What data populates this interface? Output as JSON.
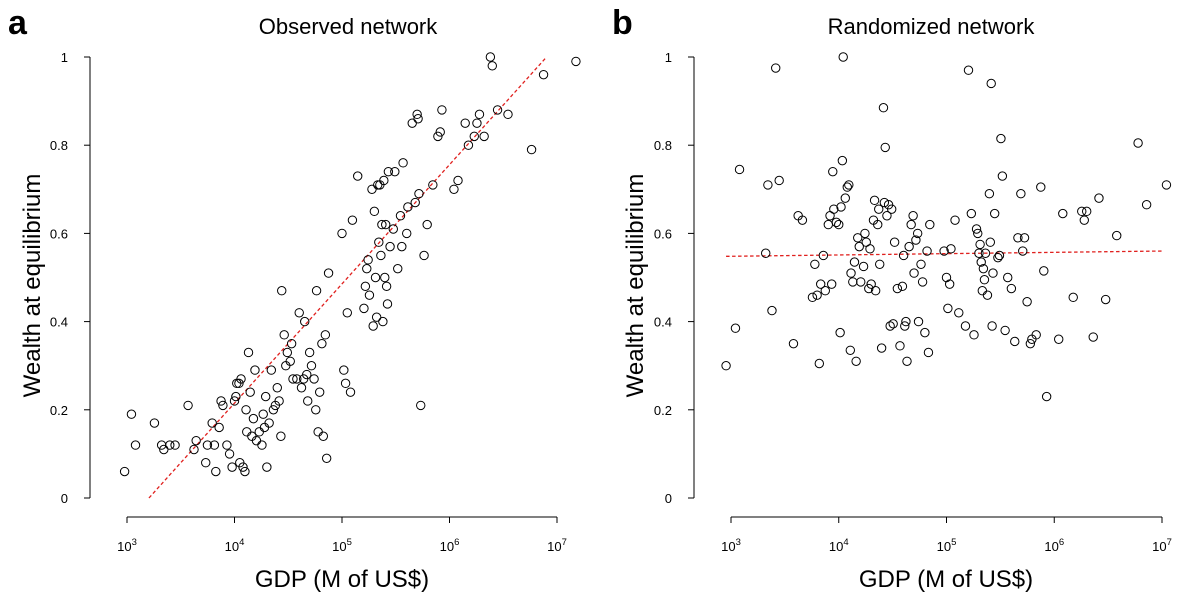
{
  "chart_data": [
    {
      "type": "scatter",
      "panel_label": "a",
      "title": "Observed network",
      "xlabel": "GDP (M of US$)",
      "ylabel": "Wealth at equilibrium",
      "x_scale": "log",
      "xlim": [
        1000,
        10000000
      ],
      "ylim": [
        0,
        1
      ],
      "x_ticks": [
        {
          "base": "10",
          "exp": "3"
        },
        {
          "base": "10",
          "exp": "4"
        },
        {
          "base": "10",
          "exp": "5"
        },
        {
          "base": "10",
          "exp": "6"
        },
        {
          "base": "10",
          "exp": "7"
        }
      ],
      "y_ticks": [
        "0",
        "0.2",
        "0.4",
        "0.6",
        "0.8",
        "1"
      ],
      "grid": false,
      "trend_line": {
        "style": "dashed",
        "color": "#e0201e",
        "points": [
          [
            1600,
            0.0
          ],
          [
            8000000,
            1.0
          ]
        ]
      },
      "points": [
        [
          950,
          0.06
        ],
        [
          1100,
          0.19
        ],
        [
          1200,
          0.12
        ],
        [
          1800,
          0.17
        ],
        [
          2100,
          0.12
        ],
        [
          2200,
          0.11
        ],
        [
          2500,
          0.12
        ],
        [
          2800,
          0.12
        ],
        [
          3700,
          0.21
        ],
        [
          4200,
          0.11
        ],
        [
          4400,
          0.13
        ],
        [
          5400,
          0.08
        ],
        [
          5600,
          0.12
        ],
        [
          6200,
          0.17
        ],
        [
          6500,
          0.12
        ],
        [
          6700,
          0.06
        ],
        [
          7200,
          0.16
        ],
        [
          7500,
          0.22
        ],
        [
          7800,
          0.21
        ],
        [
          8500,
          0.12
        ],
        [
          9000,
          0.1
        ],
        [
          9500,
          0.07
        ],
        [
          10000,
          0.22
        ],
        [
          10300,
          0.23
        ],
        [
          10500,
          0.26
        ],
        [
          11000,
          0.26
        ],
        [
          11500,
          0.27
        ],
        [
          11200,
          0.08
        ],
        [
          12000,
          0.07
        ],
        [
          12500,
          0.06
        ],
        [
          12800,
          0.2
        ],
        [
          13000,
          0.15
        ],
        [
          13500,
          0.33
        ],
        [
          14000,
          0.24
        ],
        [
          14500,
          0.14
        ],
        [
          15000,
          0.18
        ],
        [
          15500,
          0.29
        ],
        [
          16000,
          0.13
        ],
        [
          17000,
          0.15
        ],
        [
          18000,
          0.12
        ],
        [
          18500,
          0.19
        ],
        [
          19000,
          0.16
        ],
        [
          19500,
          0.23
        ],
        [
          20000,
          0.07
        ],
        [
          21000,
          0.17
        ],
        [
          22000,
          0.29
        ],
        [
          23000,
          0.2
        ],
        [
          24000,
          0.21
        ],
        [
          25000,
          0.25
        ],
        [
          26000,
          0.22
        ],
        [
          27000,
          0.14
        ],
        [
          27500,
          0.47
        ],
        [
          29000,
          0.37
        ],
        [
          30000,
          0.3
        ],
        [
          31000,
          0.33
        ],
        [
          33000,
          0.31
        ],
        [
          34000,
          0.35
        ],
        [
          35000,
          0.27
        ],
        [
          38000,
          0.27
        ],
        [
          40000,
          0.42
        ],
        [
          42000,
          0.25
        ],
        [
          44000,
          0.27
        ],
        [
          45000,
          0.4
        ],
        [
          47000,
          0.28
        ],
        [
          48000,
          0.22
        ],
        [
          50000,
          0.33
        ],
        [
          52000,
          0.3
        ],
        [
          55000,
          0.27
        ],
        [
          57000,
          0.2
        ],
        [
          58000,
          0.47
        ],
        [
          60000,
          0.15
        ],
        [
          62000,
          0.24
        ],
        [
          65000,
          0.35
        ],
        [
          67000,
          0.14
        ],
        [
          70000,
          0.37
        ],
        [
          72000,
          0.09
        ],
        [
          75000,
          0.51
        ],
        [
          100000,
          0.6
        ],
        [
          104000,
          0.29
        ],
        [
          108000,
          0.26
        ],
        [
          112000,
          0.42
        ],
        [
          120000,
          0.24
        ],
        [
          125000,
          0.63
        ],
        [
          140000,
          0.73
        ],
        [
          160000,
          0.43
        ],
        [
          165000,
          0.48
        ],
        [
          170000,
          0.52
        ],
        [
          175000,
          0.54
        ],
        [
          180000,
          0.46
        ],
        [
          190000,
          0.7
        ],
        [
          195000,
          0.39
        ],
        [
          200000,
          0.65
        ],
        [
          205000,
          0.5
        ],
        [
          210000,
          0.41
        ],
        [
          215000,
          0.71
        ],
        [
          220000,
          0.58
        ],
        [
          225000,
          0.71
        ],
        [
          230000,
          0.55
        ],
        [
          235000,
          0.62
        ],
        [
          240000,
          0.4
        ],
        [
          245000,
          0.72
        ],
        [
          250000,
          0.5
        ],
        [
          255000,
          0.62
        ],
        [
          260000,
          0.48
        ],
        [
          265000,
          0.44
        ],
        [
          270000,
          0.74
        ],
        [
          280000,
          0.57
        ],
        [
          300000,
          0.61
        ],
        [
          310000,
          0.74
        ],
        [
          330000,
          0.52
        ],
        [
          350000,
          0.64
        ],
        [
          360000,
          0.57
        ],
        [
          370000,
          0.76
        ],
        [
          400000,
          0.6
        ],
        [
          410000,
          0.66
        ],
        [
          450000,
          0.85
        ],
        [
          480000,
          0.67
        ],
        [
          500000,
          0.87
        ],
        [
          510000,
          0.86
        ],
        [
          520000,
          0.69
        ],
        [
          540000,
          0.21
        ],
        [
          580000,
          0.55
        ],
        [
          620000,
          0.62
        ],
        [
          700000,
          0.71
        ],
        [
          780000,
          0.82
        ],
        [
          820000,
          0.83
        ],
        [
          850000,
          0.88
        ],
        [
          1100000,
          0.7
        ],
        [
          1200000,
          0.72
        ],
        [
          1400000,
          0.85
        ],
        [
          1500000,
          0.8
        ],
        [
          1700000,
          0.82
        ],
        [
          1800000,
          0.85
        ],
        [
          1900000,
          0.87
        ],
        [
          2100000,
          0.82
        ],
        [
          2400000,
          1.0
        ],
        [
          2500000,
          0.98
        ],
        [
          2800000,
          0.88
        ],
        [
          3500000,
          0.87
        ],
        [
          5800000,
          0.79
        ],
        [
          7500000,
          0.96
        ],
        [
          15000000,
          0.99
        ]
      ]
    },
    {
      "type": "scatter",
      "panel_label": "b",
      "title": "Randomized network",
      "xlabel": "GDP (M of US$)",
      "ylabel": "Wealth at equilibrium",
      "x_scale": "log",
      "xlim": [
        1000,
        10000000
      ],
      "ylim": [
        0,
        1
      ],
      "x_ticks": [
        {
          "base": "10",
          "exp": "3"
        },
        {
          "base": "10",
          "exp": "4"
        },
        {
          "base": "10",
          "exp": "5"
        },
        {
          "base": "10",
          "exp": "6"
        },
        {
          "base": "10",
          "exp": "7"
        }
      ],
      "y_ticks": [
        "0",
        "0.2",
        "0.4",
        "0.6",
        "0.8",
        "1"
      ],
      "grid": false,
      "trend_line": {
        "style": "dashed",
        "color": "#e0201e",
        "points": [
          [
            900,
            0.548
          ],
          [
            10000000,
            0.56
          ]
        ]
      },
      "points": [
        [
          900,
          0.3
        ],
        [
          1100,
          0.385
        ],
        [
          1200,
          0.745
        ],
        [
          2100,
          0.555
        ],
        [
          2200,
          0.71
        ],
        [
          2400,
          0.425
        ],
        [
          2600,
          0.975
        ],
        [
          2800,
          0.72
        ],
        [
          3800,
          0.35
        ],
        [
          4200,
          0.64
        ],
        [
          4600,
          0.63
        ],
        [
          5700,
          0.455
        ],
        [
          6000,
          0.53
        ],
        [
          6300,
          0.46
        ],
        [
          6600,
          0.305
        ],
        [
          6800,
          0.485
        ],
        [
          7200,
          0.55
        ],
        [
          7500,
          0.47
        ],
        [
          8000,
          0.62
        ],
        [
          8300,
          0.64
        ],
        [
          8600,
          0.485
        ],
        [
          8800,
          0.74
        ],
        [
          9000,
          0.655
        ],
        [
          9500,
          0.625
        ],
        [
          10000,
          0.62
        ],
        [
          10300,
          0.375
        ],
        [
          10500,
          0.66
        ],
        [
          10800,
          0.765
        ],
        [
          11000,
          1.0
        ],
        [
          11500,
          0.68
        ],
        [
          12000,
          0.705
        ],
        [
          12400,
          0.71
        ],
        [
          12800,
          0.335
        ],
        [
          13000,
          0.51
        ],
        [
          13500,
          0.49
        ],
        [
          14000,
          0.535
        ],
        [
          14500,
          0.31
        ],
        [
          15000,
          0.59
        ],
        [
          15500,
          0.57
        ],
        [
          16000,
          0.49
        ],
        [
          17000,
          0.525
        ],
        [
          17500,
          0.6
        ],
        [
          18000,
          0.58
        ],
        [
          19000,
          0.475
        ],
        [
          19500,
          0.565
        ],
        [
          20000,
          0.485
        ],
        [
          21000,
          0.63
        ],
        [
          21500,
          0.675
        ],
        [
          22000,
          0.47
        ],
        [
          23000,
          0.62
        ],
        [
          23500,
          0.655
        ],
        [
          24000,
          0.53
        ],
        [
          25000,
          0.34
        ],
        [
          26000,
          0.885
        ],
        [
          26500,
          0.67
        ],
        [
          27000,
          0.795
        ],
        [
          28000,
          0.64
        ],
        [
          29000,
          0.665
        ],
        [
          30000,
          0.39
        ],
        [
          31000,
          0.655
        ],
        [
          32000,
          0.395
        ],
        [
          33000,
          0.58
        ],
        [
          35000,
          0.475
        ],
        [
          37000,
          0.345
        ],
        [
          39000,
          0.48
        ],
        [
          40000,
          0.55
        ],
        [
          41000,
          0.39
        ],
        [
          42000,
          0.4
        ],
        [
          43000,
          0.31
        ],
        [
          45000,
          0.57
        ],
        [
          47000,
          0.62
        ],
        [
          49000,
          0.64
        ],
        [
          50000,
          0.51
        ],
        [
          52000,
          0.585
        ],
        [
          54000,
          0.6
        ],
        [
          55000,
          0.4
        ],
        [
          58000,
          0.53
        ],
        [
          60000,
          0.49
        ],
        [
          63000,
          0.375
        ],
        [
          66000,
          0.56
        ],
        [
          68000,
          0.33
        ],
        [
          70000,
          0.62
        ],
        [
          95000,
          0.56
        ],
        [
          100000,
          0.5
        ],
        [
          103000,
          0.43
        ],
        [
          107000,
          0.485
        ],
        [
          110000,
          0.565
        ],
        [
          120000,
          0.63
        ],
        [
          130000,
          0.42
        ],
        [
          150000,
          0.39
        ],
        [
          160000,
          0.97
        ],
        [
          170000,
          0.645
        ],
        [
          180000,
          0.37
        ],
        [
          190000,
          0.61
        ],
        [
          195000,
          0.6
        ],
        [
          200000,
          0.555
        ],
        [
          205000,
          0.575
        ],
        [
          210000,
          0.535
        ],
        [
          215000,
          0.47
        ],
        [
          220000,
          0.52
        ],
        [
          225000,
          0.495
        ],
        [
          230000,
          0.555
        ],
        [
          240000,
          0.46
        ],
        [
          250000,
          0.69
        ],
        [
          255000,
          0.58
        ],
        [
          260000,
          0.94
        ],
        [
          265000,
          0.39
        ],
        [
          270000,
          0.51
        ],
        [
          280000,
          0.645
        ],
        [
          300000,
          0.545
        ],
        [
          310000,
          0.55
        ],
        [
          320000,
          0.815
        ],
        [
          330000,
          0.73
        ],
        [
          350000,
          0.38
        ],
        [
          370000,
          0.5
        ],
        [
          400000,
          0.475
        ],
        [
          430000,
          0.355
        ],
        [
          460000,
          0.59
        ],
        [
          490000,
          0.69
        ],
        [
          510000,
          0.56
        ],
        [
          530000,
          0.59
        ],
        [
          560000,
          0.445
        ],
        [
          600000,
          0.35
        ],
        [
          620000,
          0.36
        ],
        [
          680000,
          0.37
        ],
        [
          750000,
          0.705
        ],
        [
          800000,
          0.515
        ],
        [
          850000,
          0.23
        ],
        [
          1100000,
          0.36
        ],
        [
          1200000,
          0.645
        ],
        [
          1500000,
          0.455
        ],
        [
          1800000,
          0.65
        ],
        [
          1900000,
          0.63
        ],
        [
          2000000,
          0.65
        ],
        [
          2300000,
          0.365
        ],
        [
          2600000,
          0.68
        ],
        [
          3000000,
          0.45
        ],
        [
          3800000,
          0.595
        ],
        [
          6000000,
          0.805
        ],
        [
          7200000,
          0.665
        ],
        [
          11000000,
          0.71
        ]
      ]
    }
  ]
}
